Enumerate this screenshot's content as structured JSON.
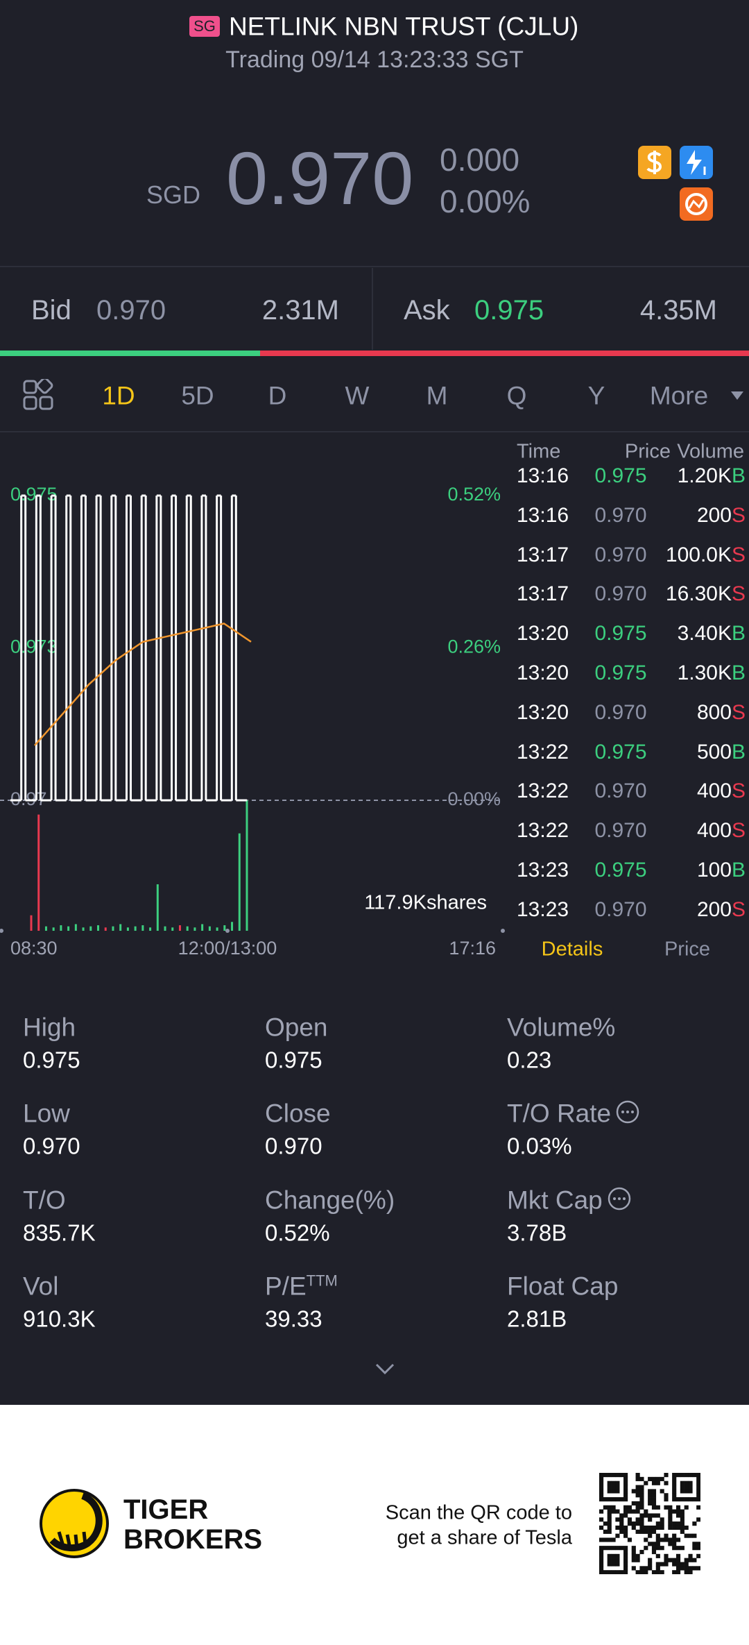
{
  "header": {
    "badge": "SG",
    "title": "NETLINK NBN TRUST (CJLU)",
    "status": "Trading 09/14 13:23:33 SGT"
  },
  "quote": {
    "currency": "SGD",
    "price": "0.970",
    "change": "0.000",
    "change_pct": "0.00%"
  },
  "bid_ask": {
    "bid_label": "Bid",
    "bid": "0.970",
    "bid_size": "2.31M",
    "ask_label": "Ask",
    "ask": "0.975",
    "ask_size": "4.35M"
  },
  "tabs": [
    "1D",
    "5D",
    "D",
    "W",
    "M",
    "Q",
    "Y",
    "More"
  ],
  "chart_data": {
    "type": "line",
    "series": [
      {
        "color": "#ffffff",
        "values": [
          0.97,
          0.975,
          0.97,
          0.975,
          0.97,
          0.975,
          0.97,
          0.975,
          0.97,
          0.975,
          0.97,
          0.975,
          0.97,
          0.975,
          0.97,
          0.975,
          0.97,
          0.975,
          0.97,
          0.975,
          0.97,
          0.975,
          0.97,
          0.975,
          0.97,
          0.975,
          0.97,
          0.975,
          0.97,
          0.975,
          0.97
        ]
      },
      {
        "color": "#f0962e",
        "values": [
          0.9709,
          0.9714,
          0.9719,
          0.9723,
          0.9726,
          0.9727,
          0.9728,
          0.9729,
          0.9726
        ]
      }
    ],
    "ylim": [
      0.97,
      0.975
    ],
    "yticks": [
      0.97,
      {
        "value": 0.9725,
        "label": "0.973"
      },
      0.975
    ],
    "y2lim": [
      0,
      0.52
    ],
    "y2ticks": [
      {
        "value": 0,
        "label": "0.00%"
      },
      {
        "value": 0.26,
        "label": "0.26%"
      },
      {
        "value": 0.52,
        "label": "0.52%"
      }
    ],
    "x_labels": [
      "08:30",
      "12:00/13:00",
      "17:16"
    ],
    "volume": {
      "values": [
        14,
        105,
        4,
        3,
        5,
        4,
        6,
        3,
        4,
        5,
        3,
        4,
        6,
        3,
        4,
        5,
        3,
        42,
        4,
        3,
        5,
        4,
        3,
        6,
        4,
        3,
        5,
        8,
        88,
        117.9
      ],
      "colors": [
        "#e8394f",
        "#e8394f",
        "#3ccf7f",
        "#3ccf7f",
        "#3ccf7f",
        "#3ccf7f",
        "#3ccf7f",
        "#3ccf7f",
        "#3ccf7f",
        "#3ccf7f",
        "#e8394f",
        "#3ccf7f",
        "#3ccf7f",
        "#3ccf7f",
        "#3ccf7f",
        "#3ccf7f",
        "#3ccf7f",
        "#3ccf7f",
        "#3ccf7f",
        "#3ccf7f",
        "#e8394f",
        "#3ccf7f",
        "#3ccf7f",
        "#3ccf7f",
        "#3ccf7f",
        "#3ccf7f",
        "#3ccf7f",
        "#3ccf7f",
        "#3ccf7f",
        "#3ccf7f"
      ],
      "ylim": [
        0,
        117.9
      ],
      "ticks": [
        {
          "value": 117.9,
          "label": "117.9Kshares"
        }
      ]
    }
  },
  "trades": {
    "headers": [
      "Time",
      "Price",
      "Volume"
    ],
    "rows": [
      {
        "time": "13:16",
        "price": "0.975",
        "volume": "1.20K",
        "side": "B"
      },
      {
        "time": "13:16",
        "price": "0.970",
        "volume": "200",
        "side": "S"
      },
      {
        "time": "13:17",
        "price": "0.970",
        "volume": "100.0K",
        "side": "S"
      },
      {
        "time": "13:17",
        "price": "0.970",
        "volume": "16.30K",
        "side": "S"
      },
      {
        "time": "13:20",
        "price": "0.975",
        "volume": "3.40K",
        "side": "B"
      },
      {
        "time": "13:20",
        "price": "0.975",
        "volume": "1.30K",
        "side": "B"
      },
      {
        "time": "13:20",
        "price": "0.970",
        "volume": "800",
        "side": "S"
      },
      {
        "time": "13:22",
        "price": "0.975",
        "volume": "500",
        "side": "B"
      },
      {
        "time": "13:22",
        "price": "0.970",
        "volume": "400",
        "side": "S"
      },
      {
        "time": "13:22",
        "price": "0.970",
        "volume": "400",
        "side": "S"
      },
      {
        "time": "13:23",
        "price": "0.975",
        "volume": "100",
        "side": "B"
      },
      {
        "time": "13:23",
        "price": "0.970",
        "volume": "200",
        "side": "S"
      }
    ],
    "tabs": [
      "Details",
      "Price"
    ]
  },
  "stats": [
    [
      {
        "label": "High",
        "value": "0.975"
      },
      {
        "label": "Open",
        "value": "0.975"
      },
      {
        "label": "Volume%",
        "value": "0.23"
      }
    ],
    [
      {
        "label": "Low",
        "value": "0.970"
      },
      {
        "label": "Close",
        "value": "0.970"
      },
      {
        "label": "T/O Rate",
        "value": "0.03%",
        "info": true
      }
    ],
    [
      {
        "label": "T/O",
        "value": "835.7K"
      },
      {
        "label": "Change(%)",
        "value": "0.52%"
      },
      {
        "label": "Mkt Cap",
        "value": "3.78B",
        "info": true
      }
    ],
    [
      {
        "label": "Vol",
        "value": "910.3K"
      },
      {
        "label": "P/E",
        "sup": "TTM",
        "value": "39.33"
      },
      {
        "label": "Float Cap",
        "value": "2.81B"
      }
    ]
  ],
  "footer": {
    "brand_line1": "TIGER",
    "brand_line2": "BROKERS",
    "promo_line1": "Scan the QR code to",
    "promo_line2": "get a share of Tesla"
  }
}
